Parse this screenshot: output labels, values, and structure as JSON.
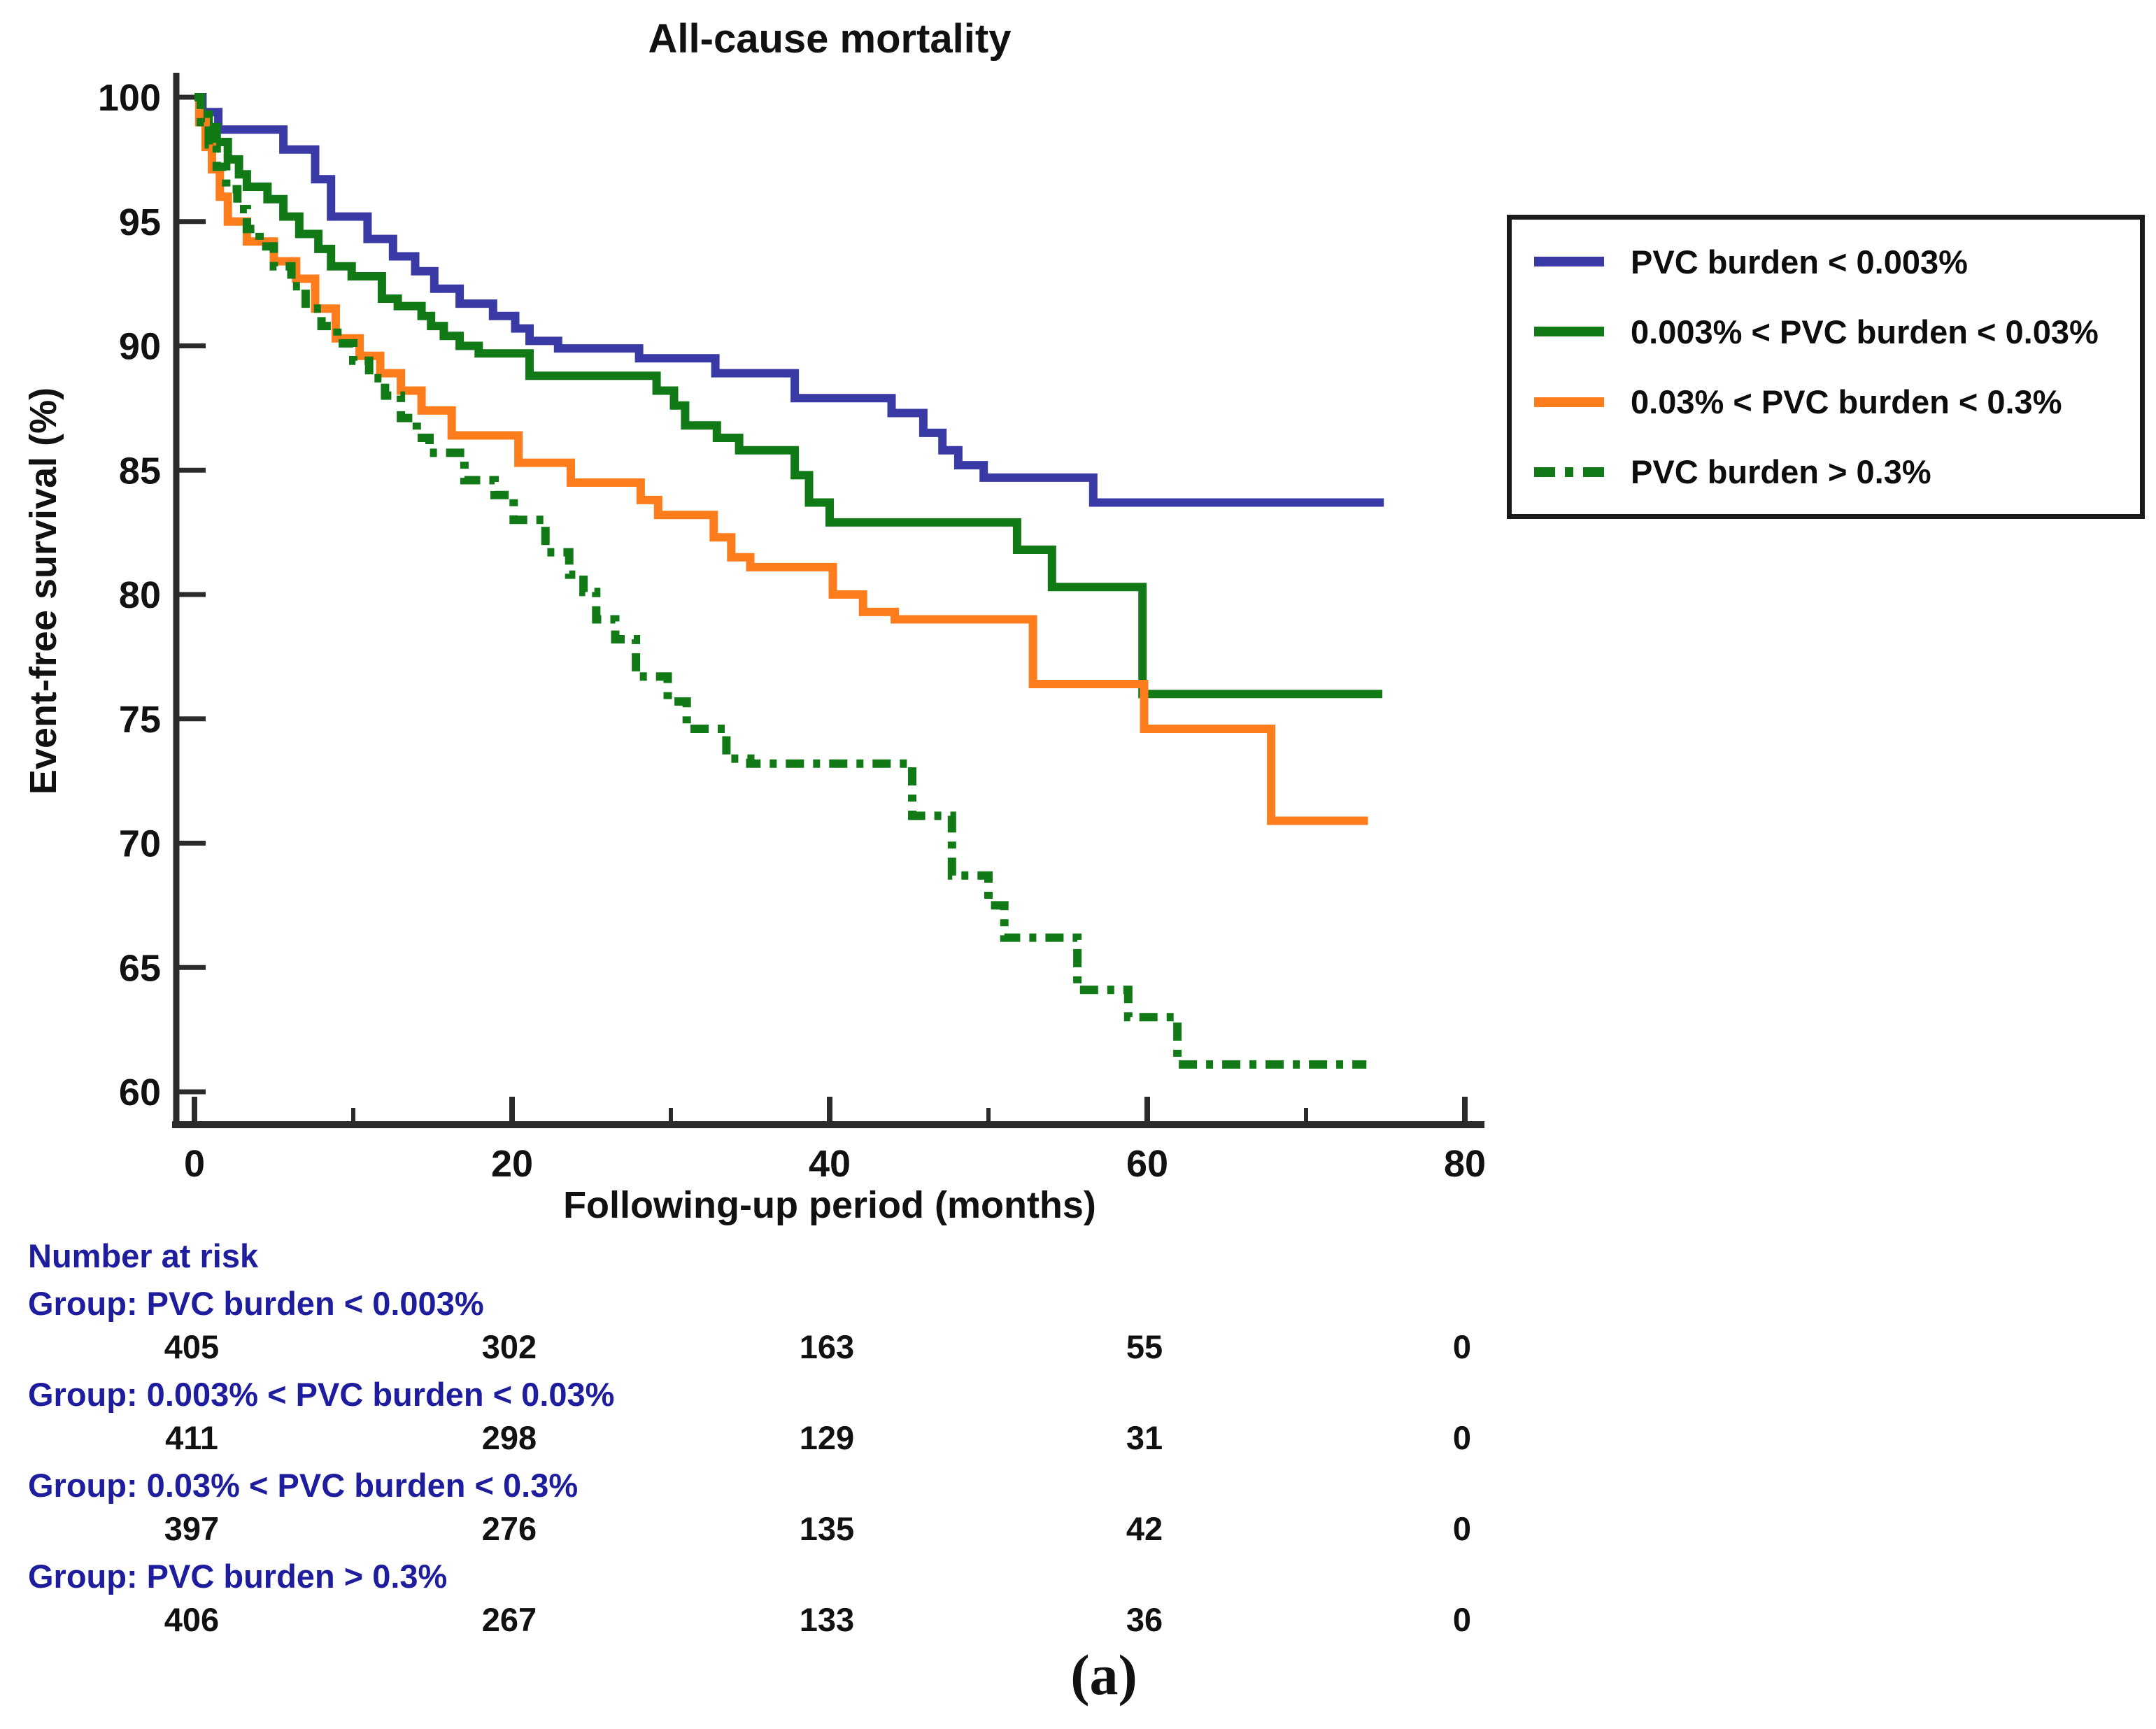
{
  "title": "All-cause mortality",
  "caption": "(a)",
  "colors": {
    "blue": "#3a3aa6",
    "green": "#117a17",
    "orange": "#fd7c1b",
    "axis": "#2b2b2b",
    "risk_text": "#1d1d9e",
    "tick_text": "#111111"
  },
  "axes": {
    "x_label": "Following-up period (months)",
    "y_label": "Event-free survival (%)",
    "y_ticks": [
      100,
      95,
      90,
      85,
      80,
      75,
      70,
      65,
      60
    ],
    "x_ticks_major": [
      0,
      20,
      40,
      60,
      80
    ],
    "x_ticks_minor": [
      10,
      30,
      50,
      70
    ]
  },
  "legend": {
    "items": [
      {
        "label": "PVC burden < 0.003%",
        "color": "#3a3aa6",
        "dash": "solid"
      },
      {
        "label": "0.003% < PVC burden < 0.03%",
        "color": "#117a17",
        "dash": "solid"
      },
      {
        "label": "0.03% < PVC burden < 0.3%",
        "color": "#fd7c1b",
        "dash": "solid"
      },
      {
        "label": "PVC burden > 0.3%",
        "color": "#117a17",
        "dash": "dashdot"
      }
    ]
  },
  "chart_data": {
    "type": "line",
    "subtype": "kaplan-meier-step",
    "title": "All-cause mortality",
    "xlabel": "Following-up period (months)",
    "ylabel": "Event-free survival (%)",
    "xlim": [
      0,
      80
    ],
    "ylim": [
      60,
      100
    ],
    "grid": false,
    "legend_position": "upper right",
    "series": [
      {
        "name": "PVC burden < 0.003%",
        "color": "#3a3aa6",
        "dash": "solid",
        "points": [
          [
            0,
            100
          ],
          [
            0.5,
            99.4
          ],
          [
            1.5,
            98.7
          ],
          [
            5.6,
            97.9
          ],
          [
            7.6,
            96.7
          ],
          [
            8.6,
            95.2
          ],
          [
            10.9,
            94.3
          ],
          [
            12.5,
            93.6
          ],
          [
            13.9,
            93.0
          ],
          [
            15.1,
            92.3
          ],
          [
            16.7,
            91.7
          ],
          [
            18.8,
            91.2
          ],
          [
            20.2,
            90.7
          ],
          [
            21.1,
            90.2
          ],
          [
            22.9,
            89.9
          ],
          [
            28,
            89.5
          ],
          [
            32.8,
            88.9
          ],
          [
            37.8,
            87.9
          ],
          [
            43.9,
            87.3
          ],
          [
            45.9,
            86.5
          ],
          [
            47.1,
            85.8
          ],
          [
            48.1,
            85.2
          ],
          [
            49.7,
            84.7
          ],
          [
            56.6,
            83.7
          ],
          [
            74.9,
            83.7
          ]
        ]
      },
      {
        "name": "0.003% < PVC burden < 0.03%",
        "color": "#117a17",
        "dash": "solid",
        "points": [
          [
            0,
            100
          ],
          [
            0.4,
            99.3
          ],
          [
            0.9,
            98.8
          ],
          [
            1.4,
            98.2
          ],
          [
            2.1,
            97.5
          ],
          [
            2.8,
            96.9
          ],
          [
            3.3,
            96.4
          ],
          [
            4.6,
            95.9
          ],
          [
            5.6,
            95.2
          ],
          [
            6.6,
            94.5
          ],
          [
            7.8,
            93.9
          ],
          [
            8.6,
            93.2
          ],
          [
            9.9,
            92.8
          ],
          [
            11.8,
            91.9
          ],
          [
            12.8,
            91.6
          ],
          [
            14.3,
            91.2
          ],
          [
            14.9,
            90.8
          ],
          [
            15.7,
            90.4
          ],
          [
            16.7,
            90.0
          ],
          [
            17.9,
            89.7
          ],
          [
            21.1,
            88.8
          ],
          [
            29.1,
            88.2
          ],
          [
            30.2,
            87.6
          ],
          [
            30.9,
            86.8
          ],
          [
            32.9,
            86.3
          ],
          [
            34.3,
            85.8
          ],
          [
            37.8,
            84.8
          ],
          [
            38.7,
            83.7
          ],
          [
            40,
            82.9
          ],
          [
            51.8,
            81.8
          ],
          [
            54,
            80.3
          ],
          [
            59.7,
            76.0
          ],
          [
            74.8,
            76.0
          ]
        ]
      },
      {
        "name": "0.03% < PVC burden < 0.3%",
        "color": "#fd7c1b",
        "dash": "solid",
        "points": [
          [
            0,
            100
          ],
          [
            0.3,
            99.0
          ],
          [
            0.7,
            98.0
          ],
          [
            1.1,
            97.1
          ],
          [
            1.6,
            96.0
          ],
          [
            2.1,
            95.0
          ],
          [
            3.3,
            94.2
          ],
          [
            5,
            93.4
          ],
          [
            6.4,
            92.7
          ],
          [
            7.6,
            91.5
          ],
          [
            8.9,
            90.3
          ],
          [
            10.4,
            89.6
          ],
          [
            11.7,
            88.9
          ],
          [
            13,
            88.2
          ],
          [
            14.3,
            87.4
          ],
          [
            16.2,
            86.4
          ],
          [
            20.4,
            85.3
          ],
          [
            23.7,
            84.5
          ],
          [
            28.1,
            83.8
          ],
          [
            29.2,
            83.2
          ],
          [
            32.7,
            82.3
          ],
          [
            33.8,
            81.5
          ],
          [
            35,
            81.1
          ],
          [
            40.2,
            80.0
          ],
          [
            42.1,
            79.3
          ],
          [
            44.1,
            79.0
          ],
          [
            52.8,
            76.4
          ],
          [
            59.8,
            74.6
          ],
          [
            67.8,
            70.9
          ],
          [
            73.9,
            70.9
          ]
        ]
      },
      {
        "name": "PVC burden > 0.3%",
        "color": "#117a17",
        "dash": "dashdot",
        "points": [
          [
            0,
            100
          ],
          [
            0.4,
            99.0
          ],
          [
            0.9,
            98.1
          ],
          [
            1.4,
            97.2
          ],
          [
            2,
            96.3
          ],
          [
            2.7,
            95.5
          ],
          [
            3.3,
            94.7
          ],
          [
            4.1,
            94.0
          ],
          [
            5,
            93.2
          ],
          [
            6.1,
            92.4
          ],
          [
            7,
            91.5
          ],
          [
            8,
            90.8
          ],
          [
            9,
            90.1
          ],
          [
            10,
            89.4
          ],
          [
            11,
            88.7
          ],
          [
            12,
            88.0
          ],
          [
            13,
            87.1
          ],
          [
            14,
            86.3
          ],
          [
            14.8,
            85.7
          ],
          [
            17,
            84.6
          ],
          [
            18.9,
            84.0
          ],
          [
            20.1,
            83.0
          ],
          [
            22.1,
            81.7
          ],
          [
            23.6,
            80.8
          ],
          [
            24.5,
            80.1
          ],
          [
            25.3,
            79.0
          ],
          [
            26.5,
            78.2
          ],
          [
            27.8,
            76.7
          ],
          [
            29.8,
            75.7
          ],
          [
            31,
            74.6
          ],
          [
            33.5,
            73.4
          ],
          [
            35,
            73.2
          ],
          [
            45.2,
            71.1
          ],
          [
            47.7,
            68.7
          ],
          [
            50,
            67.5
          ],
          [
            51,
            66.2
          ],
          [
            55.6,
            64.1
          ],
          [
            58.8,
            63.0
          ],
          [
            61.9,
            61.1
          ],
          [
            73.8,
            61.1
          ]
        ]
      }
    ]
  },
  "risk_table": {
    "heading": "Number at risk",
    "columns_months": [
      0,
      20,
      40,
      60,
      80
    ],
    "groups": [
      {
        "label": "Group: PVC burden < 0.003%",
        "counts": [
          "405",
          "302",
          "163",
          "55",
          "0"
        ]
      },
      {
        "label": "Group: 0.003% < PVC burden < 0.03%",
        "counts": [
          "411",
          "298",
          "129",
          "31",
          "0"
        ]
      },
      {
        "label": "Group: 0.03% < PVC burden < 0.3%",
        "counts": [
          "397",
          "276",
          "135",
          "42",
          "0"
        ]
      },
      {
        "label": "Group: PVC burden > 0.3%",
        "counts": [
          "406",
          "267",
          "133",
          "36",
          "0"
        ]
      }
    ]
  }
}
